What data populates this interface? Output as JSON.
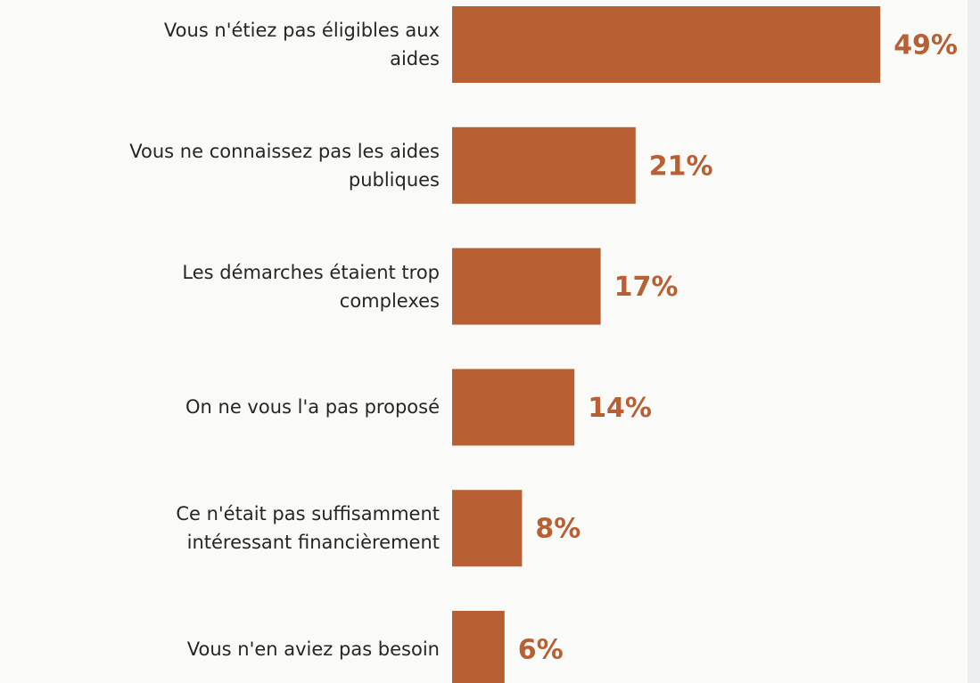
{
  "chart_data": {
    "type": "bar",
    "orientation": "horizontal",
    "categories": [
      "Vous n'étiez pas éligibles aux\naides",
      "Vous ne connaissez pas les aides\npubliques",
      "Les démarches étaient trop\ncomplexes",
      "On ne vous l'a pas proposé",
      "Ce n'était pas suffisamment\nintéressant financièrement",
      "Vous n'en aviez pas besoin"
    ],
    "values": [
      49,
      21,
      17,
      14,
      8,
      6
    ],
    "value_labels": [
      "49%",
      "21%",
      "17%",
      "14%",
      "8%",
      "6%"
    ],
    "color": "#b86033"
  }
}
